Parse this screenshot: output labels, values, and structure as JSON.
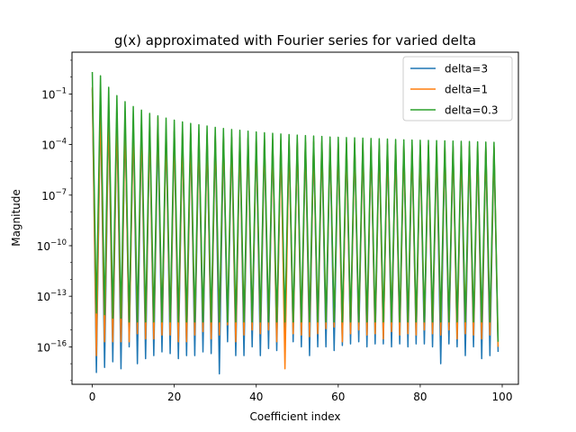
{
  "chart_data": {
    "type": "line",
    "title": "g(x) approximated with Fourier series for varied delta",
    "xlabel": "Coefficient index",
    "ylabel": "Magnitude",
    "xlim": [
      -4.95,
      103.95
    ],
    "ylim": [
      6e-19,
      30
    ],
    "yscale": "log",
    "grid": false,
    "legend": "top-right",
    "x_ticks": [
      0,
      20,
      40,
      60,
      80,
      100
    ],
    "y_ticks": [
      {
        "value": 1e-16,
        "base": "10",
        "exp": "−16"
      },
      {
        "value": 1e-13,
        "base": "10",
        "exp": "−13"
      },
      {
        "value": 1e-10,
        "base": "10",
        "exp": "−10"
      },
      {
        "value": 1e-07,
        "base": "10",
        "exp": "−7"
      },
      {
        "value": 0.0001,
        "base": "10",
        "exp": "−4"
      },
      {
        "value": 0.1,
        "base": "10",
        "exp": "−1"
      }
    ],
    "x": [
      0,
      1,
      2,
      3,
      4,
      5,
      6,
      7,
      8,
      9,
      10,
      11,
      12,
      13,
      14,
      15,
      16,
      17,
      18,
      19,
      20,
      21,
      22,
      23,
      24,
      25,
      26,
      27,
      28,
      29,
      30,
      31,
      32,
      33,
      34,
      35,
      36,
      37,
      38,
      39,
      40,
      41,
      42,
      43,
      44,
      45,
      46,
      47,
      48,
      49,
      50,
      51,
      52,
      53,
      54,
      55,
      56,
      57,
      58,
      59,
      60,
      61,
      62,
      63,
      64,
      65,
      66,
      67,
      68,
      69,
      70,
      71,
      72,
      73,
      74,
      75,
      76,
      77,
      78,
      79,
      80,
      81,
      82,
      83,
      84,
      85,
      86,
      87,
      88,
      89,
      90,
      91,
      92,
      93,
      94,
      95,
      96,
      97,
      98,
      99
    ],
    "series": [
      {
        "name": "delta=3",
        "color": "#1f77b4",
        "values": [
          0.2,
          3e-18,
          0.024,
          6e-18,
          0.0085,
          1.3e-17,
          0.0045,
          5e-18,
          0.0028,
          1e-16,
          0.0019,
          1e-17,
          0.0014,
          2e-17,
          0.0011,
          3e-17,
          0.00085,
          5e-17,
          0.0007,
          4e-17,
          0.00058,
          2e-17,
          0.0005,
          3e-17,
          0.00043,
          3e-17,
          0.00038,
          5e-17,
          0.00034,
          4e-17,
          0.0003,
          2.5e-18,
          0.00027,
          2e-16,
          0.00025,
          3e-17,
          0.00023,
          3e-17,
          0.00021,
          1e-16,
          0.00019,
          3e-17,
          0.00018,
          8e-17,
          0.00017,
          6e-17,
          0.00016,
          1e-16,
          0.00015,
          2e-16,
          0.00014,
          1e-16,
          0.00013,
          3e-17,
          0.000125,
          1e-16,
          0.00012,
          1e-16,
          0.000115,
          6e-17,
          0.00011,
          1.2e-16,
          0.000105,
          1.5e-16,
          0.0001,
          2e-16,
          9.6e-05,
          1e-16,
          9.3e-05,
          1.5e-16,
          9e-05,
          1.5e-16,
          8.7e-05,
          1e-16,
          8.4e-05,
          1.5e-16,
          8.1e-05,
          1e-16,
          7.9e-05,
          1.5e-16,
          7.7e-05,
          1.5e-16,
          7.5e-05,
          1e-16,
          7.3e-05,
          1e-17,
          7.1e-05,
          1.5e-16,
          6.9e-05,
          1e-16,
          6.8e-05,
          3e-17,
          6.6e-05,
          1e-16,
          6.5e-05,
          2e-17,
          6.4e-05,
          3e-17,
          6.3e-05,
          5e-17
        ]
      },
      {
        "name": "delta=1",
        "color": "#ff7f0e",
        "values": [
          0.25,
          3e-17,
          0.03,
          2e-16,
          0.011,
          2e-16,
          0.0055,
          2e-16,
          0.0033,
          2e-16,
          0.0023,
          6e-16,
          0.0017,
          3e-16,
          0.0013,
          3e-16,
          0.004,
          5e-16,
          0.0008,
          5e-16,
          0.00067,
          2e-16,
          0.00058,
          2e-16,
          0.0005,
          5e-16,
          0.00044,
          8e-16,
          0.00039,
          3e-16,
          0.00035,
          5e-16,
          0.00032,
          2e-15,
          0.00029,
          2e-16,
          0.00027,
          5e-16,
          0.00025,
          1e-15,
          0.00023,
          6e-16,
          0.00021,
          1e-15,
          0.0002,
          2e-16,
          0.00019,
          5e-18,
          0.00018,
          6e-16,
          0.00017,
          5e-16,
          0.00016,
          4e-16,
          0.00015,
          6e-16,
          0.000145,
          1.2e-15,
          0.00014,
          1.5e-15,
          0.000135,
          2e-16,
          0.00013,
          6e-16,
          0.000125,
          1e-15,
          0.00012,
          5e-16,
          0.000115,
          6e-16,
          0.00011,
          3e-16,
          0.000106,
          8e-16,
          0.000103,
          5e-16,
          0.0001,
          6e-16,
          9.7e-05,
          5e-16,
          9.4e-05,
          1e-15,
          9.1e-05,
          6e-16,
          8.9e-05,
          5e-16,
          8.7e-05,
          1e-15,
          8.5e-05,
          3e-16,
          8.3e-05,
          6e-16,
          8.1e-05,
          5e-16,
          8e-05,
          3e-16,
          7.8e-05,
          5e-16,
          7.7e-05,
          1e-16
        ]
      },
      {
        "name": "delta=0.3",
        "color": "#2ca02c",
        "values": [
          2.0,
          1e-14,
          1.2,
          8e-15,
          0.25,
          5e-15,
          0.08,
          5e-15,
          0.035,
          3e-15,
          0.018,
          3e-15,
          0.011,
          3e-15,
          0.007,
          3e-15,
          0.005,
          3e-15,
          0.0037,
          3e-15,
          0.0028,
          3e-15,
          0.0022,
          3e-15,
          0.0018,
          3e-15,
          0.0015,
          3e-15,
          0.00125,
          3e-15,
          0.00105,
          3e-15,
          0.0009,
          3e-15,
          0.00078,
          3e-15,
          0.0007,
          3e-15,
          0.00062,
          3e-15,
          0.00056,
          3e-15,
          0.0005,
          3e-15,
          0.00046,
          3e-15,
          0.00042,
          3e-15,
          0.00039,
          3e-15,
          0.00036,
          3e-15,
          0.00034,
          3e-15,
          0.00032,
          3e-15,
          0.0003,
          3e-15,
          0.00028,
          3e-15,
          0.00027,
          3e-15,
          0.00026,
          3e-15,
          0.00025,
          3e-15,
          0.00024,
          3e-15,
          0.00023,
          3e-15,
          0.00022,
          3e-15,
          0.00021,
          3e-15,
          0.0002,
          3e-15,
          0.00019,
          3e-15,
          0.000185,
          3e-15,
          0.00018,
          3e-15,
          0.000175,
          3e-15,
          0.00017,
          3e-15,
          0.000165,
          3e-15,
          0.00016,
          3e-15,
          0.000155,
          3e-15,
          0.00015,
          3e-15,
          0.000145,
          3e-15,
          0.00014,
          3e-15,
          0.000135,
          2e-16
        ]
      }
    ]
  }
}
